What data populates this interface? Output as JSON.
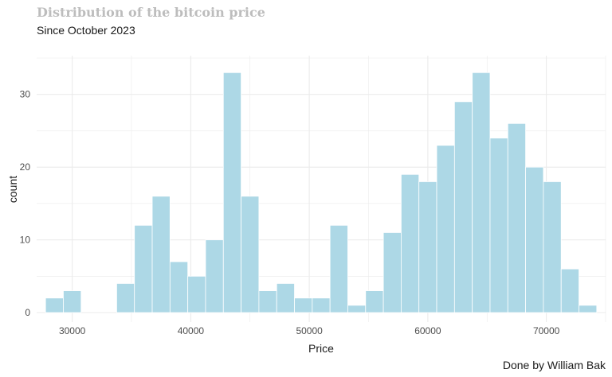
{
  "header": {
    "title": "Distribution of the bitcoin price",
    "subtitle": "Since October 2023"
  },
  "caption": "Done by William Bak",
  "colors": {
    "bar_fill": "#add8e6",
    "bar_stroke": "#ffffff",
    "grid": "#ebebeb",
    "title": "#bdbdbd"
  },
  "chart_data": {
    "type": "bar",
    "title": "Distribution of the bitcoin price",
    "subtitle": "Since October 2023",
    "xlabel": "Price",
    "ylabel": "count",
    "xlim": [
      27000,
      75000
    ],
    "ylim": [
      0,
      35
    ],
    "grid": true,
    "legend": "none",
    "x_ticks": [
      30000,
      40000,
      50000,
      60000,
      70000
    ],
    "y_ticks": [
      0,
      10,
      20,
      30
    ],
    "bin_width": 1500,
    "bins": [
      {
        "center": 28500,
        "count": 2
      },
      {
        "center": 30000,
        "count": 3
      },
      {
        "center": 31500,
        "count": 0
      },
      {
        "center": 33000,
        "count": 0
      },
      {
        "center": 34500,
        "count": 4
      },
      {
        "center": 36000,
        "count": 12
      },
      {
        "center": 37500,
        "count": 16
      },
      {
        "center": 39000,
        "count": 7
      },
      {
        "center": 40500,
        "count": 5
      },
      {
        "center": 42000,
        "count": 10
      },
      {
        "center": 43500,
        "count": 33
      },
      {
        "center": 45000,
        "count": 16
      },
      {
        "center": 46500,
        "count": 3
      },
      {
        "center": 48000,
        "count": 4
      },
      {
        "center": 49500,
        "count": 2
      },
      {
        "center": 51000,
        "count": 2
      },
      {
        "center": 52500,
        "count": 12
      },
      {
        "center": 54000,
        "count": 1
      },
      {
        "center": 55500,
        "count": 3
      },
      {
        "center": 57000,
        "count": 11
      },
      {
        "center": 58500,
        "count": 19
      },
      {
        "center": 60000,
        "count": 18
      },
      {
        "center": 61500,
        "count": 23
      },
      {
        "center": 63000,
        "count": 29
      },
      {
        "center": 64500,
        "count": 33
      },
      {
        "center": 66000,
        "count": 24
      },
      {
        "center": 67500,
        "count": 26
      },
      {
        "center": 69000,
        "count": 20
      },
      {
        "center": 70500,
        "count": 18
      },
      {
        "center": 72000,
        "count": 6
      },
      {
        "center": 73500,
        "count": 1
      }
    ]
  }
}
